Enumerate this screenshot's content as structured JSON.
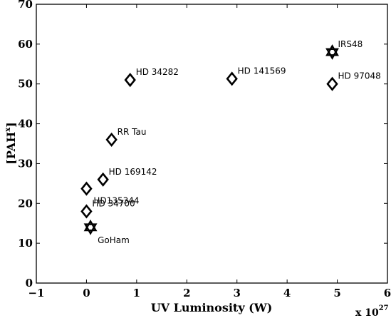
{
  "chart_data": {
    "type": "scatter",
    "xlabel": "UV Luminosity (W)",
    "ylabel": "[PAH",
    "ylabel_sup": "x",
    "ylabel_close": "]",
    "x_exponent_prefix": "x 10",
    "x_exponent_power": "27",
    "xlim": [
      -1,
      6
    ],
    "ylim": [
      0,
      70
    ],
    "xticks": [
      "-1",
      "0",
      "1",
      "2",
      "3",
      "4",
      "5",
      "6"
    ],
    "yticks": [
      "0",
      "10",
      "20",
      "30",
      "40",
      "50",
      "60",
      "70"
    ],
    "grid": false,
    "points": [
      {
        "label": "HD 34282",
        "x": 0.87,
        "y": 51,
        "marker": "diamond"
      },
      {
        "label": "HD 141569",
        "x": 2.9,
        "y": 51.3,
        "marker": "diamond"
      },
      {
        "label": "IRS48",
        "x": 4.9,
        "y": 58,
        "marker": "star"
      },
      {
        "label": "HD 97048",
        "x": 4.9,
        "y": 50,
        "marker": "diamond"
      },
      {
        "label": "RR Tau",
        "x": 0.5,
        "y": 36,
        "marker": "diamond"
      },
      {
        "label": "HD 169142",
        "x": 0.33,
        "y": 26,
        "marker": "diamond"
      },
      {
        "label": "HD135344",
        "x": 0.0,
        "y": 23.7,
        "marker": "diamond"
      },
      {
        "label": "HD 34700",
        "x": 0.0,
        "y": 18,
        "marker": "diamond"
      },
      {
        "label": "GoHam",
        "x": 0.08,
        "y": 14,
        "marker": "star"
      }
    ]
  }
}
